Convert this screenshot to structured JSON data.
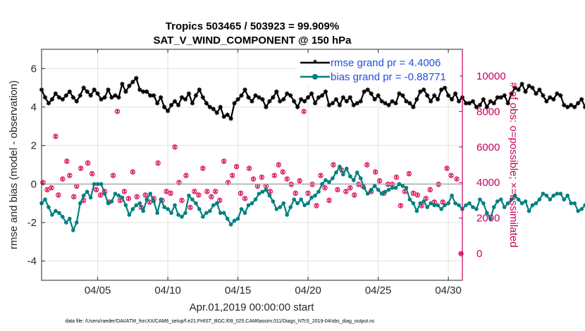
{
  "chart_data": {
    "type": "line",
    "title_line1": "Tropics 503465 / 503923 = 99.909%",
    "title_line2": "SAT_V_WIND_COMPONENT @ 150 hPa",
    "xlabel": "Apr.01,2019 00:00:00 start",
    "ylabel_left": "rmse and bias (model - observation)",
    "ylabel_right": "# of obs: o=possible; ×=assimilated",
    "footer": "data file: /Users/raeder/DAI/ATM_forcXX/CAM6_setup/f.e21.FHIST_BGC.f09_025.CAM6assim.011/Diags_NTrS_2019-04/obs_diag_output.nc",
    "xlim": [
      1.0,
      31.0
    ],
    "ylim_left": [
      -5,
      7
    ],
    "ylim_right": [
      -1500,
      11500
    ],
    "x_ticks": [
      5,
      10,
      15,
      20,
      25,
      30
    ],
    "x_tick_labels": [
      "04/05",
      "04/10",
      "04/15",
      "04/20",
      "04/25",
      "04/30"
    ],
    "y_left_ticks": [
      -4,
      -2,
      0,
      2,
      4,
      6
    ],
    "y_left_tick_labels": [
      "-4",
      "-2",
      "0",
      "2",
      "4",
      "6"
    ],
    "y_right_ticks": [
      0,
      2000,
      4000,
      6000,
      8000,
      10000
    ],
    "y_right_tick_labels": [
      "0",
      "2000",
      "4000",
      "6000",
      "8000",
      "10000"
    ],
    "grid": true,
    "legend_position": "top-right",
    "colors": {
      "rmse": "#000000",
      "bias": "#008080",
      "obs": "#d6004f",
      "zero_line": "#aaaaaa",
      "right_axis": "#c8005a"
    },
    "series": [
      {
        "name": "rmse grand pr = 4.4006",
        "x_start": 1.0,
        "x_step": 0.25,
        "values": [
          4.9,
          4.5,
          4.2,
          4.4,
          4.7,
          4.5,
          4.4,
          4.6,
          4.8,
          4.5,
          4.3,
          4.6,
          5.0,
          4.8,
          4.6,
          4.9,
          4.7,
          4.4,
          4.5,
          4.9,
          4.5,
          4.6,
          4.5,
          5.2,
          4.8,
          5.1,
          5.3,
          5.5,
          4.9,
          4.8,
          4.8,
          4.6,
          4.6,
          4.2,
          4.5,
          4.0,
          3.8,
          4.1,
          4.3,
          4.1,
          4.5,
          4.4,
          4.7,
          4.2,
          4.6,
          4.9,
          4.5,
          4.2,
          4.0,
          3.9,
          3.7,
          4.0,
          3.5,
          3.6,
          3.4,
          4.2,
          4.4,
          4.6,
          4.9,
          4.5,
          4.3,
          4.6,
          4.5,
          4.4,
          4.0,
          4.3,
          4.5,
          4.8,
          4.3,
          4.4,
          4.7,
          4.6,
          4.3,
          4.0,
          4.4,
          4.3,
          4.5,
          4.7,
          4.2,
          4.5,
          4.6,
          4.8,
          4.1,
          4.2,
          4.4,
          4.1,
          4.5,
          4.3,
          4.5,
          4.1,
          4.2,
          4.3,
          4.8,
          4.9,
          4.7,
          4.4,
          4.6,
          4.3,
          4.2,
          4.1,
          4.3,
          4.2,
          4.7,
          4.6,
          4.3,
          4.2,
          4.0,
          4.4,
          4.8,
          4.9,
          4.6,
          4.3,
          4.6,
          4.4,
          4.9,
          5.0,
          4.6,
          4.4,
          4.7,
          4.3,
          4.5,
          4.2,
          4.2,
          4.3,
          4.0,
          4.1,
          4.4,
          4.0,
          4.3,
          4.2,
          4.5,
          4.5,
          4.6,
          4.2,
          4.7,
          5.0,
          4.9,
          5.2,
          4.8,
          5.1,
          5.0,
          4.7,
          4.9,
          4.6,
          4.3,
          4.5,
          4.4,
          4.7,
          4.6,
          4.1,
          4.0,
          4.1,
          4.0,
          4.2,
          4.4,
          4.0,
          4.3,
          4.3,
          3.8,
          4.0,
          4.5,
          4.8,
          4.6,
          4.4,
          4.6,
          4.3,
          4.0,
          4.3,
          4.2,
          4.6,
          4.4,
          4.2,
          4.5,
          4.1,
          4.0,
          4.3,
          4.3,
          4.4,
          4.3,
          4.4,
          4.2,
          4.6,
          4.2,
          4.3,
          4.3,
          4.3,
          4.3,
          4.2,
          4.3,
          4.3,
          4.2,
          4.2
        ]
      },
      {
        "name": "bias grand pr = -0.88771",
        "x_start": 1.0,
        "x_step": 0.25,
        "values": [
          -1.0,
          -0.8,
          -1.2,
          -1.6,
          -1.4,
          -1.5,
          -1.7,
          -2.0,
          -1.8,
          -2.4,
          -2.0,
          -1.0,
          -0.6,
          -0.4,
          -0.7,
          0.0,
          0.0,
          0.0,
          -0.5,
          -1.0,
          -0.9,
          -0.5,
          -0.6,
          -0.7,
          -1.1,
          -1.6,
          -1.3,
          -1.1,
          -1.0,
          -1.4,
          -0.8,
          -0.5,
          -0.9,
          -1.5,
          -0.8,
          -1.2,
          -1.3,
          -1.5,
          -1.1,
          -1.6,
          -1.7,
          -1.5,
          -0.6,
          -0.8,
          -1.0,
          -1.3,
          -1.7,
          -1.5,
          -1.4,
          -1.1,
          -1.0,
          -1.5,
          -1.5,
          -1.8,
          -2.1,
          -1.9,
          -1.8,
          -1.3,
          -1.5,
          -1.1,
          -1.0,
          -0.8,
          -0.5,
          -0.4,
          -0.3,
          -0.6,
          -0.9,
          -1.3,
          -1.2,
          -1.0,
          -1.6,
          -1.2,
          -0.8,
          -1.0,
          -0.8,
          -1.1,
          -1.0,
          -0.7,
          -0.6,
          -0.4,
          0.0,
          0.2,
          0.1,
          0.3,
          0.6,
          0.9,
          0.5,
          0.8,
          0.4,
          0.2,
          0.6,
          0.3,
          -0.2,
          -0.5,
          -0.3,
          -0.1,
          -0.3,
          -0.5,
          -0.4,
          -0.3,
          -0.2,
          -0.2,
          0.0,
          -0.1,
          -0.2,
          -0.8,
          -1.0,
          -1.4,
          -1.0,
          -0.9,
          -1.2,
          -1.0,
          -1.1,
          -1.1,
          -1.3,
          -1.1,
          -1.0,
          -0.6,
          -1.0,
          -1.1,
          -1.3,
          -1.1,
          -1.0,
          -1.2,
          -1.3,
          -0.8,
          -1.0,
          -1.5,
          -1.8,
          -1.2,
          -0.9,
          -0.8,
          -1.2,
          -1.0,
          -0.8,
          -0.6,
          -0.8,
          -1.0,
          -0.9,
          -1.4,
          -1.1,
          -1.0,
          -0.8,
          -0.5,
          -0.6,
          -0.8,
          -0.6,
          -0.5,
          -0.5,
          -0.8,
          -0.6,
          -1.0,
          -1.0,
          -1.4,
          -1.3,
          -1.1,
          -1.2,
          -1.0,
          -1.2,
          -0.7,
          -0.8,
          -0.5,
          -0.6,
          -0.5,
          -0.7,
          -1.0,
          -1.2,
          -1.5,
          -1.2,
          -1.0,
          -0.8,
          -0.9,
          -1.1,
          -1.3,
          -1.0,
          -1.2,
          -1.3,
          -1.1,
          -1.1,
          -1.2,
          -1.7,
          -1.3,
          -1.1,
          -0.9,
          -0.5,
          -0.3,
          0.0,
          0.1,
          0.1,
          0.2
        ]
      },
      {
        "name": "# of obs",
        "axis": "right",
        "points": [
          [
            1.1,
            4000
          ],
          [
            1.4,
            3600
          ],
          [
            1.7,
            3700
          ],
          [
            2.0,
            6600
          ],
          [
            2.2,
            3300
          ],
          [
            2.5,
            4200
          ],
          [
            2.8,
            5200
          ],
          [
            3.0,
            4400
          ],
          [
            3.3,
            3200
          ],
          [
            3.5,
            3800
          ],
          [
            3.8,
            4800
          ],
          [
            4.0,
            3000
          ],
          [
            4.3,
            5100
          ],
          [
            4.6,
            4500
          ],
          [
            4.9,
            3600
          ],
          [
            5.2,
            3300
          ],
          [
            5.5,
            3500
          ],
          [
            5.8,
            2900
          ],
          [
            6.1,
            4400
          ],
          [
            6.4,
            8000
          ],
          [
            6.6,
            3000
          ],
          [
            6.9,
            3500
          ],
          [
            7.2,
            3100
          ],
          [
            7.5,
            4600
          ],
          [
            7.8,
            3200
          ],
          [
            8.1,
            2600
          ],
          [
            8.4,
            3300
          ],
          [
            8.7,
            2900
          ],
          [
            9.0,
            3100
          ],
          [
            9.3,
            5100
          ],
          [
            9.6,
            3000
          ],
          [
            9.9,
            3500
          ],
          [
            10.2,
            3400
          ],
          [
            10.5,
            6000
          ],
          [
            10.8,
            4000
          ],
          [
            11.0,
            3000
          ],
          [
            11.3,
            4400
          ],
          [
            11.6,
            2600
          ],
          [
            11.9,
            3500
          ],
          [
            12.2,
            3300
          ],
          [
            12.5,
            4800
          ],
          [
            12.8,
            3500
          ],
          [
            13.1,
            3200
          ],
          [
            13.4,
            3500
          ],
          [
            13.7,
            3000
          ],
          [
            14.0,
            5200
          ],
          [
            14.3,
            4000
          ],
          [
            14.6,
            4400
          ],
          [
            14.9,
            4900
          ],
          [
            15.2,
            3400
          ],
          [
            15.5,
            3100
          ],
          [
            15.8,
            4800
          ],
          [
            16.1,
            4200
          ],
          [
            16.4,
            3800
          ],
          [
            16.7,
            4300
          ],
          [
            17.0,
            3800
          ],
          [
            17.3,
            3500
          ],
          [
            17.6,
            4400
          ],
          [
            17.9,
            5000
          ],
          [
            18.2,
            4600
          ],
          [
            18.5,
            4200
          ],
          [
            18.8,
            3900
          ],
          [
            19.1,
            3400
          ],
          [
            19.4,
            4100
          ],
          [
            19.7,
            8000
          ],
          [
            20.0,
            3400
          ],
          [
            20.3,
            3900
          ],
          [
            20.6,
            2700
          ],
          [
            20.9,
            4400
          ],
          [
            21.2,
            3700
          ],
          [
            21.5,
            3000
          ],
          [
            21.8,
            5000
          ],
          [
            22.1,
            3600
          ],
          [
            22.4,
            4700
          ],
          [
            22.7,
            3500
          ],
          [
            23.0,
            3700
          ],
          [
            23.3,
            3300
          ],
          [
            23.6,
            3900
          ],
          [
            23.9,
            3800
          ],
          [
            24.2,
            5000
          ],
          [
            24.5,
            3500
          ],
          [
            24.8,
            4600
          ],
          [
            25.1,
            4100
          ],
          [
            25.4,
            3400
          ],
          [
            25.7,
            3900
          ],
          [
            26.0,
            3900
          ],
          [
            26.3,
            4300
          ],
          [
            26.6,
            2700
          ],
          [
            26.9,
            3500
          ],
          [
            27.2,
            4500
          ],
          [
            27.5,
            3400
          ],
          [
            27.8,
            3300
          ],
          [
            28.1,
            2700
          ],
          [
            28.4,
            3100
          ],
          [
            28.7,
            3600
          ],
          [
            29.0,
            2900
          ],
          [
            29.3,
            3900
          ],
          [
            29.6,
            2900
          ],
          [
            29.9,
            4800
          ],
          [
            30.2,
            4400
          ],
          [
            30.6,
            4200
          ],
          [
            30.9,
            0
          ]
        ]
      }
    ],
    "legend": [
      {
        "label": "rmse grand pr = 4.4006",
        "series": "rmse"
      },
      {
        "label": "bias grand pr = -0.88771",
        "series": "bias"
      }
    ]
  }
}
